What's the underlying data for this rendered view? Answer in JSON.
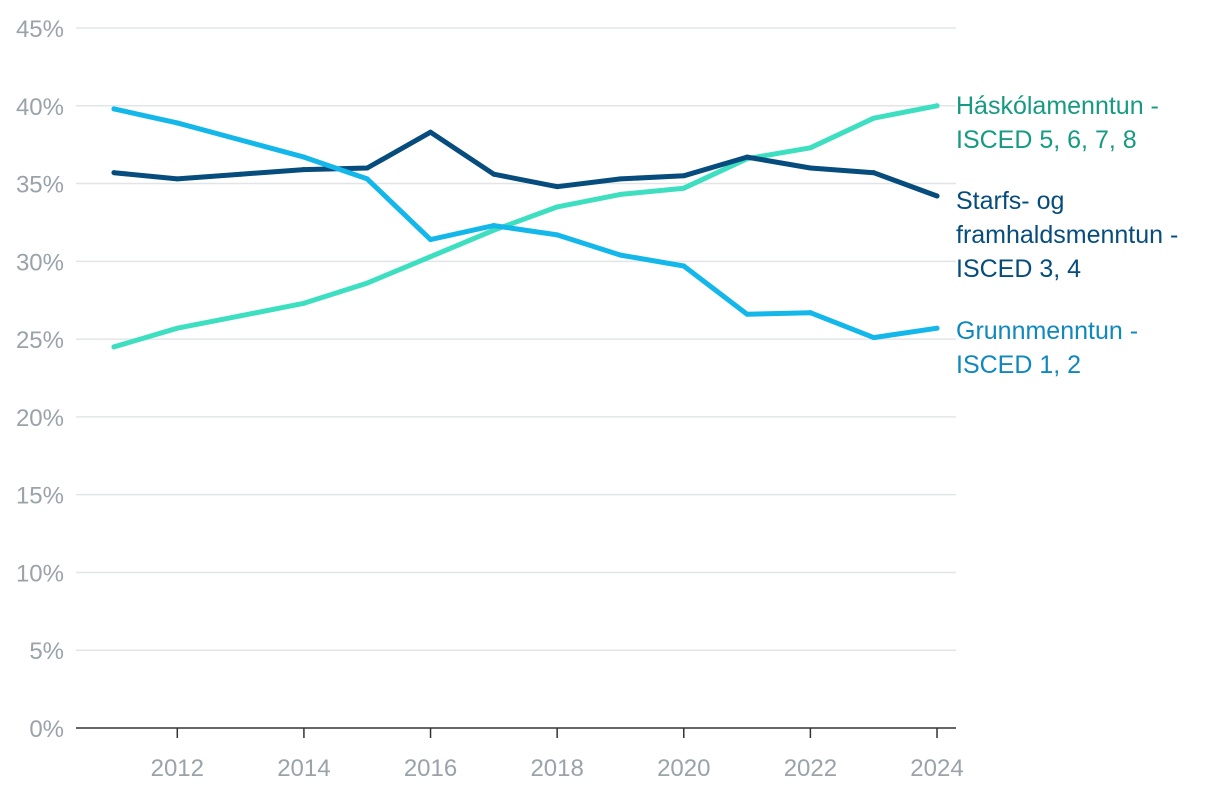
{
  "chart_data": {
    "type": "line",
    "title": "",
    "xlabel": "",
    "ylabel": "",
    "x": [
      2011,
      2012,
      2013,
      2014,
      2015,
      2016,
      2017,
      2018,
      2019,
      2020,
      2021,
      2022,
      2023,
      2024
    ],
    "xlim": [
      2010.4,
      2024.3
    ],
    "ylim": [
      0,
      45
    ],
    "x_ticks": [
      "2012",
      "2014",
      "2016",
      "2018",
      "2020",
      "2022",
      "2024"
    ],
    "y_ticks": [
      "0%",
      "5%",
      "10%",
      "15%",
      "20%",
      "25%",
      "30%",
      "35%",
      "40%",
      "45%"
    ],
    "grid": "horizontal",
    "legend": "direct labels at right end of lines",
    "series": [
      {
        "name_lines": [
          "Háskólamenntun -",
          "ISCED 5, 6, 7, 8"
        ],
        "line_color": "#3ddfc0",
        "label_color": "#169a82",
        "values": [
          24.5,
          25.7,
          26.5,
          27.3,
          28.6,
          30.3,
          32.0,
          33.5,
          34.3,
          34.7,
          36.6,
          37.3,
          39.2,
          40.0
        ]
      },
      {
        "name_lines": [
          "Starfs- og",
          "framhaldsmenntun -",
          "ISCED 3, 4"
        ],
        "line_color": "#064c7c",
        "label_color": "#064c7c",
        "values": [
          35.7,
          35.3,
          35.6,
          35.9,
          36.0,
          38.3,
          35.6,
          34.8,
          35.3,
          35.5,
          36.7,
          36.0,
          35.7,
          34.2
        ]
      },
      {
        "name_lines": [
          "Grunnmenntun -",
          "ISCED 1, 2"
        ],
        "line_color": "#14b7ea",
        "label_color": "#1188bd",
        "values": [
          39.8,
          38.9,
          37.8,
          36.7,
          35.3,
          31.4,
          32.3,
          31.7,
          30.4,
          29.7,
          26.6,
          26.7,
          25.1,
          25.7
        ]
      }
    ]
  }
}
